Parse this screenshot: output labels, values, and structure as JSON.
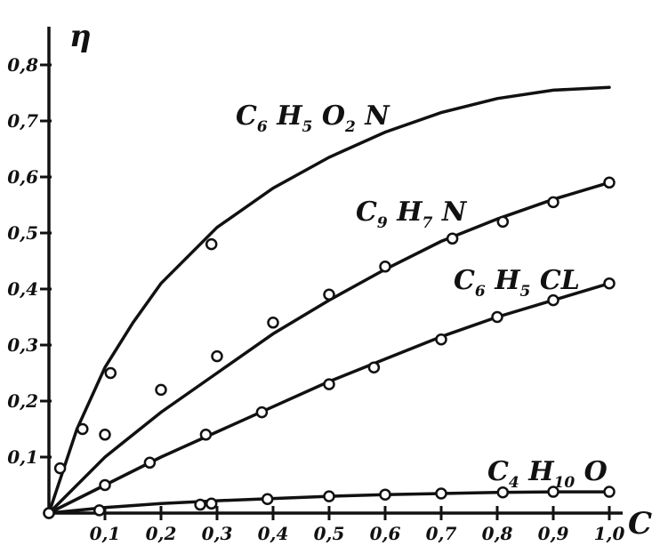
{
  "chart_data": {
    "type": "line",
    "xlabel": "C",
    "ylabel": "η",
    "xlim": [
      0,
      1.0
    ],
    "ylim": [
      0,
      0.85
    ],
    "x_ticks": [
      "0,1",
      "0,2",
      "0,3",
      "0,4",
      "0,5",
      "0,6",
      "0,7",
      "0,8",
      "0,9",
      "1,0"
    ],
    "y_ticks": [
      "0,1",
      "0,2",
      "0,3",
      "0,4",
      "0,5",
      "0,6",
      "0,7",
      "0,8"
    ],
    "grid": false,
    "series": [
      {
        "name": "C6H5O2N",
        "label_parts": [
          [
            "C",
            "6"
          ],
          [
            "H",
            "5"
          ],
          [
            "O",
            "2"
          ],
          [
            "N",
            ""
          ]
        ],
        "curve": [
          [
            0,
            0
          ],
          [
            0.05,
            0.15
          ],
          [
            0.1,
            0.26
          ],
          [
            0.15,
            0.34
          ],
          [
            0.2,
            0.41
          ],
          [
            0.25,
            0.46
          ],
          [
            0.3,
            0.51
          ],
          [
            0.4,
            0.58
          ],
          [
            0.5,
            0.635
          ],
          [
            0.6,
            0.68
          ],
          [
            0.7,
            0.715
          ],
          [
            0.8,
            0.74
          ],
          [
            0.9,
            0.755
          ],
          [
            1.0,
            0.76
          ]
        ],
        "points": [
          [
            0.02,
            0.08
          ],
          [
            0.06,
            0.15
          ],
          [
            0.1,
            0.14
          ],
          [
            0.11,
            0.25
          ],
          [
            0.2,
            0.22
          ],
          [
            0.29,
            0.48
          ],
          [
            0.3,
            0.28
          ],
          [
            0.0,
            0.0
          ]
        ]
      },
      {
        "name": "C9H7N",
        "label_parts": [
          [
            "C",
            "9"
          ],
          [
            "H",
            "7"
          ],
          [
            "N",
            ""
          ]
        ],
        "curve": [
          [
            0,
            0
          ],
          [
            0.1,
            0.1
          ],
          [
            0.2,
            0.18
          ],
          [
            0.3,
            0.25
          ],
          [
            0.4,
            0.32
          ],
          [
            0.5,
            0.38
          ],
          [
            0.6,
            0.435
          ],
          [
            0.7,
            0.485
          ],
          [
            0.8,
            0.525
          ],
          [
            0.9,
            0.56
          ],
          [
            1.0,
            0.59
          ]
        ],
        "points": [
          [
            0.0,
            0.0
          ],
          [
            0.4,
            0.34
          ],
          [
            0.5,
            0.39
          ],
          [
            0.6,
            0.44
          ],
          [
            0.72,
            0.49
          ],
          [
            0.81,
            0.52
          ],
          [
            0.9,
            0.555
          ],
          [
            1.0,
            0.59
          ]
        ]
      },
      {
        "name": "C6H5CL",
        "label_parts": [
          [
            "C",
            "6"
          ],
          [
            "H",
            "5"
          ],
          [
            "CL",
            ""
          ]
        ],
        "curve": [
          [
            0,
            0
          ],
          [
            0.1,
            0.05
          ],
          [
            0.2,
            0.1
          ],
          [
            0.3,
            0.145
          ],
          [
            0.4,
            0.19
          ],
          [
            0.5,
            0.235
          ],
          [
            0.6,
            0.275
          ],
          [
            0.7,
            0.315
          ],
          [
            0.8,
            0.35
          ],
          [
            0.9,
            0.38
          ],
          [
            1.0,
            0.41
          ]
        ],
        "points": [
          [
            0.1,
            0.05
          ],
          [
            0.18,
            0.09
          ],
          [
            0.28,
            0.14
          ],
          [
            0.38,
            0.18
          ],
          [
            0.5,
            0.23
          ],
          [
            0.58,
            0.26
          ],
          [
            0.7,
            0.31
          ],
          [
            0.8,
            0.35
          ],
          [
            0.9,
            0.38
          ],
          [
            1.0,
            0.41
          ]
        ]
      },
      {
        "name": "C4H10O",
        "label_parts": [
          [
            "C",
            "4"
          ],
          [
            "H",
            "10"
          ],
          [
            "O",
            ""
          ]
        ],
        "curve": [
          [
            0,
            0
          ],
          [
            0.1,
            0.01
          ],
          [
            0.2,
            0.017
          ],
          [
            0.3,
            0.022
          ],
          [
            0.4,
            0.026
          ],
          [
            0.5,
            0.03
          ],
          [
            0.6,
            0.033
          ],
          [
            0.7,
            0.035
          ],
          [
            0.8,
            0.037
          ],
          [
            0.9,
            0.038
          ],
          [
            1.0,
            0.038
          ]
        ],
        "points": [
          [
            0.09,
            0.005
          ],
          [
            0.27,
            0.015
          ],
          [
            0.29,
            0.017
          ],
          [
            0.39,
            0.025
          ],
          [
            0.5,
            0.03
          ],
          [
            0.6,
            0.033
          ],
          [
            0.7,
            0.035
          ],
          [
            0.81,
            0.037
          ],
          [
            0.9,
            0.038
          ],
          [
            1.0,
            0.038
          ]
        ]
      }
    ]
  }
}
